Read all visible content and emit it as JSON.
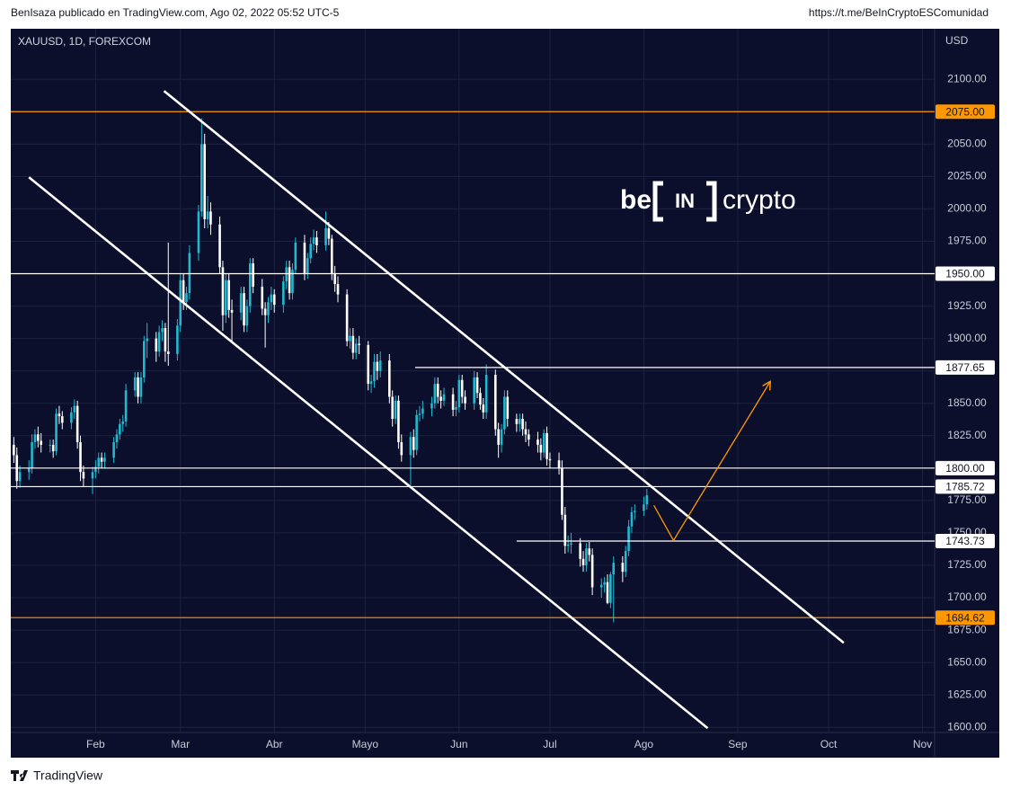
{
  "header": {
    "author_line": "BenIsaza publicado en TradingView.com, Ago 02, 2022 05:52 UTC-5",
    "link": "https://t.me/BeInCryptoESComunidad"
  },
  "footer": {
    "brand": "TradingView"
  },
  "chart_data": {
    "type": "candlestick",
    "title": "XAUUSD, 1D, FOREXCOM",
    "currency": "USD",
    "watermark": {
      "left": "be",
      "mid": "IN",
      "right": "crypto"
    },
    "up_color": "#22b8cf",
    "down_color": "#ffffff",
    "xlim": [
      4,
      309
    ],
    "ylim": [
      1596,
      2139
    ],
    "grid": true,
    "xticks": [
      {
        "value": 32,
        "label": "Feb"
      },
      {
        "value": 60,
        "label": "Mar"
      },
      {
        "value": 91,
        "label": "Abr"
      },
      {
        "value": 121,
        "label": "Mayo"
      },
      {
        "value": 152,
        "label": "Jun"
      },
      {
        "value": 182,
        "label": "Jul"
      },
      {
        "value": 213,
        "label": "Ago"
      },
      {
        "value": 244,
        "label": "Sep"
      },
      {
        "value": 274,
        "label": "Oct"
      },
      {
        "value": 305,
        "label": "Nov"
      }
    ],
    "yticks": [
      {
        "value": 1600,
        "label": "1600.00"
      },
      {
        "value": 1625,
        "label": "1625.00"
      },
      {
        "value": 1650,
        "label": "1650.00"
      },
      {
        "value": 1675,
        "label": "1675.00"
      },
      {
        "value": 1700,
        "label": "1700.00"
      },
      {
        "value": 1725,
        "label": "1725.00"
      },
      {
        "value": 1750,
        "label": "1750.00"
      },
      {
        "value": 1775,
        "label": "1775.00"
      },
      {
        "value": 1800,
        "label": "1800.00"
      },
      {
        "value": 1825,
        "label": "1825.00"
      },
      {
        "value": 1850,
        "label": "1850.00"
      },
      {
        "value": 1875,
        "label": "1875.00"
      },
      {
        "value": 1900,
        "label": "1900.00"
      },
      {
        "value": 1925,
        "label": "1925.00"
      },
      {
        "value": 1950,
        "label": "1950.00"
      },
      {
        "value": 1975,
        "label": "1975.00"
      },
      {
        "value": 2000,
        "label": "2000.00"
      },
      {
        "value": 2025,
        "label": "2025.00"
      },
      {
        "value": 2050,
        "label": "2050.00"
      },
      {
        "value": 2075,
        "label": "2075.00"
      },
      {
        "value": 2100,
        "label": "2100.00"
      }
    ],
    "x": [
      5,
      6,
      7,
      10,
      11,
      12,
      13,
      14,
      17,
      18,
      19,
      20,
      21,
      24,
      25,
      26,
      27,
      28,
      31,
      32,
      33,
      34,
      35,
      38,
      39,
      40,
      41,
      42,
      45,
      46,
      47,
      48,
      49,
      52,
      53,
      54,
      55,
      56,
      59,
      60,
      61,
      62,
      63,
      66,
      67,
      68,
      69,
      70,
      73,
      74,
      75,
      76,
      77,
      80,
      81,
      82,
      83,
      84,
      87,
      88,
      89,
      90,
      91,
      94,
      95,
      96,
      97,
      98,
      101,
      102,
      103,
      104,
      105,
      108,
      109,
      110,
      111,
      112,
      115,
      116,
      117,
      118,
      119,
      122,
      123,
      124,
      125,
      126,
      129,
      130,
      131,
      132,
      133,
      136,
      137,
      138,
      139,
      140,
      143,
      144,
      145,
      146,
      147,
      150,
      151,
      152,
      153,
      154,
      157,
      158,
      159,
      160,
      161,
      164,
      165,
      166,
      167,
      168,
      171,
      172,
      173,
      174,
      175,
      178,
      179,
      180,
      181,
      182,
      185,
      186,
      187,
      188,
      189,
      192,
      193,
      194,
      195,
      196,
      199,
      200,
      201,
      202,
      203,
      206,
      207,
      208,
      209,
      210,
      213,
      214
    ],
    "open": [
      1818,
      1810,
      1790,
      1797,
      1800,
      1820,
      1826,
      1821,
      1818,
      1818,
      1813,
      1842,
      1840,
      1835,
      1843,
      1848,
      1820,
      1797,
      1792,
      1797,
      1801,
      1808,
      1805,
      1808,
      1820,
      1826,
      1834,
      1836,
      1860,
      1870,
      1855,
      1870,
      1898,
      1900,
      1890,
      1905,
      1908,
      1890,
      1888,
      1910,
      1945,
      1928,
      1935,
      1966,
      1998,
      2050,
      1992,
      1998,
      1988,
      1955,
      1918,
      1945,
      1922,
      1920,
      1935,
      1910,
      1925,
      1958,
      1940,
      1923,
      1918,
      1928,
      1934,
      1926,
      1944,
      1955,
      1935,
      1953,
      1974,
      1950,
      1962,
      1973,
      1978,
      1972,
      1985,
      1977,
      1950,
      1942,
      1934,
      1898,
      1902,
      1889,
      1896,
      1895,
      1865,
      1867,
      1882,
      1875,
      1883,
      1855,
      1838,
      1852,
      1820,
      1810,
      1824,
      1814,
      1841,
      1842,
      1846,
      1850,
      1865,
      1855,
      1852,
      1857,
      1845,
      1847,
      1868,
      1855,
      1850,
      1870,
      1858,
      1849,
      1843,
      1872,
      1830,
      1818,
      1830,
      1855,
      1838,
      1834,
      1838,
      1830,
      1826,
      1822,
      1818,
      1812,
      1827,
      1807,
      1806,
      1800,
      1764,
      1740,
      1741,
      1742,
      1730,
      1725,
      1738,
      1733,
      1708,
      1710,
      1712,
      1696,
      1718,
      1727,
      1720,
      1736,
      1755,
      1766,
      1767,
      1772
    ],
    "high": [
      1824,
      1816,
      1802,
      1806,
      1826,
      1830,
      1832,
      1827,
      1822,
      1822,
      1846,
      1848,
      1844,
      1847,
      1853,
      1852,
      1825,
      1802,
      1801,
      1806,
      1812,
      1812,
      1812,
      1824,
      1830,
      1838,
      1841,
      1865,
      1874,
      1874,
      1874,
      1902,
      1912,
      1905,
      1910,
      1914,
      1912,
      1974,
      1915,
      1950,
      1950,
      1940,
      1972,
      2003,
      2070,
      2058,
      2010,
      2005,
      1994,
      1960,
      1950,
      1950,
      1930,
      1940,
      1940,
      1930,
      1962,
      1962,
      1946,
      1928,
      1932,
      1940,
      1938,
      1948,
      1960,
      1960,
      1958,
      1978,
      1980,
      1966,
      1978,
      1984,
      1983,
      1998,
      1990,
      1980,
      1956,
      1948,
      1938,
      1908,
      1908,
      1900,
      1902,
      1898,
      1872,
      1888,
      1888,
      1890,
      1888,
      1860,
      1856,
      1856,
      1826,
      1828,
      1830,
      1845,
      1848,
      1852,
      1855,
      1870,
      1870,
      1860,
      1862,
      1862,
      1852,
      1872,
      1872,
      1860,
      1875,
      1874,
      1862,
      1854,
      1880,
      1876,
      1835,
      1834,
      1860,
      1860,
      1842,
      1842,
      1842,
      1836,
      1830,
      1828,
      1823,
      1830,
      1832,
      1812,
      1812,
      1806,
      1770,
      1748,
      1750,
      1746,
      1736,
      1742,
      1743,
      1738,
      1715,
      1716,
      1718,
      1720,
      1732,
      1732,
      1740,
      1760,
      1770,
      1772,
      1778,
      1784
    ],
    "low": [
      1804,
      1784,
      1785,
      1791,
      1796,
      1815,
      1816,
      1812,
      1812,
      1808,
      1810,
      1834,
      1830,
      1830,
      1838,
      1815,
      1790,
      1786,
      1780,
      1792,
      1796,
      1800,
      1800,
      1804,
      1815,
      1822,
      1828,
      1832,
      1855,
      1850,
      1850,
      1866,
      1885,
      1882,
      1886,
      1898,
      1882,
      1879,
      1883,
      1905,
      1922,
      1922,
      1930,
      1960,
      1994,
      1985,
      1985,
      1980,
      1950,
      1906,
      1912,
      1916,
      1898,
      1914,
      1905,
      1905,
      1920,
      1935,
      1918,
      1893,
      1912,
      1922,
      1920,
      1920,
      1938,
      1930,
      1930,
      1950,
      1945,
      1946,
      1958,
      1968,
      1966,
      1968,
      1972,
      1945,
      1936,
      1928,
      1894,
      1892,
      1884,
      1884,
      1888,
      1860,
      1858,
      1862,
      1868,
      1870,
      1850,
      1832,
      1834,
      1815,
      1805,
      1787,
      1808,
      1810,
      1836,
      1838,
      1840,
      1846,
      1850,
      1846,
      1848,
      1840,
      1840,
      1843,
      1850,
      1845,
      1845,
      1854,
      1845,
      1838,
      1838,
      1825,
      1808,
      1812,
      1826,
      1832,
      1828,
      1828,
      1825,
      1820,
      1817,
      1812,
      1806,
      1808,
      1802,
      1800,
      1795,
      1760,
      1734,
      1735,
      1734,
      1724,
      1720,
      1720,
      1728,
      1702,
      1700,
      1704,
      1695,
      1692,
      1681,
      1712,
      1716,
      1732,
      1750,
      1760,
      1763,
      1768
    ],
    "close": [
      1810,
      1790,
      1797,
      1800,
      1820,
      1826,
      1821,
      1818,
      1818,
      1813,
      1842,
      1840,
      1835,
      1843,
      1848,
      1820,
      1797,
      1792,
      1797,
      1801,
      1808,
      1805,
      1808,
      1820,
      1826,
      1834,
      1836,
      1860,
      1870,
      1855,
      1870,
      1898,
      1900,
      1890,
      1905,
      1908,
      1890,
      1888,
      1910,
      1945,
      1928,
      1935,
      1966,
      1998,
      2050,
      1992,
      1998,
      1988,
      1955,
      1918,
      1945,
      1922,
      1920,
      1935,
      1910,
      1925,
      1958,
      1940,
      1923,
      1918,
      1928,
      1934,
      1926,
      1944,
      1955,
      1935,
      1953,
      1974,
      1950,
      1962,
      1973,
      1978,
      1972,
      1985,
      1977,
      1950,
      1942,
      1934,
      1898,
      1902,
      1889,
      1896,
      1895,
      1865,
      1867,
      1882,
      1875,
      1883,
      1855,
      1838,
      1852,
      1820,
      1810,
      1824,
      1814,
      1841,
      1842,
      1846,
      1850,
      1865,
      1855,
      1852,
      1857,
      1845,
      1847,
      1868,
      1855,
      1850,
      1870,
      1858,
      1849,
      1843,
      1872,
      1830,
      1818,
      1830,
      1855,
      1838,
      1834,
      1838,
      1830,
      1826,
      1822,
      1818,
      1812,
      1827,
      1807,
      1806,
      1800,
      1764,
      1740,
      1741,
      1742,
      1730,
      1725,
      1738,
      1733,
      1708,
      1710,
      1712,
      1696,
      1718,
      1727,
      1720,
      1736,
      1755,
      1766,
      1767,
      1772,
      1779
    ],
    "levels": [
      {
        "value": 2075,
        "label": "2075.00",
        "color": "#ff9800"
      },
      {
        "value": 1950,
        "label": "1950.00",
        "color": "#ffffff"
      },
      {
        "value": 1877.65,
        "label": "1877.65",
        "color": "#ffffff",
        "x0": 137.5
      },
      {
        "value": 1800,
        "label": "1800.00",
        "color": "#ffffff"
      },
      {
        "value": 1785.72,
        "label": "1785.72",
        "color": "#ffffff"
      },
      {
        "value": 1743.73,
        "label": "1743.73",
        "color": "#ffffff",
        "x0": 171
      },
      {
        "value": 1684.62,
        "label": "1684.62",
        "color": "#ff9800"
      }
    ],
    "lines": [
      {
        "color": "#ffffff",
        "points": [
          [
            54.6,
            2091
          ],
          [
            279,
            1665.2
          ]
        ]
      },
      {
        "color": "#ffffff",
        "points": [
          [
            10,
            2024.4
          ],
          [
            234.1,
            1599.3
          ]
        ]
      },
      {
        "color": "#ff9800",
        "arrow": true,
        "points": [
          [
            216.3,
            1771.3
          ],
          [
            222.8,
            1744.2
          ],
          [
            254.6,
            1866.3
          ]
        ]
      }
    ]
  }
}
